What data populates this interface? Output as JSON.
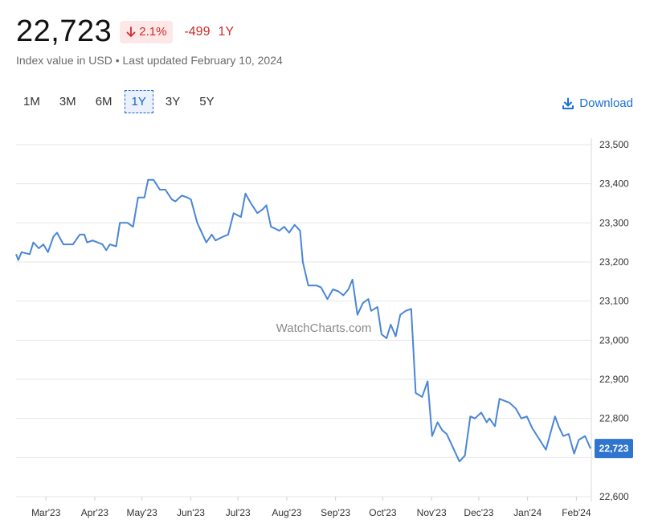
{
  "header": {
    "price": "22,723",
    "change_pct": "2.1%",
    "change_abs": "-499",
    "change_period": "1Y",
    "subtitle": "Index value in USD • Last updated February 10, 2024"
  },
  "ranges": [
    "1M",
    "3M",
    "6M",
    "1Y",
    "3Y",
    "5Y"
  ],
  "active_range": "1Y",
  "download_label": "Download",
  "watermark": "WatchCharts.com",
  "colors": {
    "line": "#4a86d6",
    "negative": "#d02a2a",
    "accent": "#1a6fd6",
    "tag": "#2f74cf"
  },
  "chart_data": {
    "type": "line",
    "ylim": [
      22600,
      23500
    ],
    "yticks": [
      22600,
      22700,
      22800,
      22900,
      23000,
      23100,
      23200,
      23300,
      23400,
      23500
    ],
    "ytick_labels": [
      "22,600",
      "",
      "22,800",
      "22,900",
      "23,000",
      "23,100",
      "23,200",
      "23,300",
      "23,400",
      "23,500"
    ],
    "x_start": "2023-02-10",
    "x_end": "2024-02-10",
    "xtick_labels": [
      "Mar'23",
      "Apr'23",
      "May'23",
      "Jun'23",
      "Jul'23",
      "Aug'23",
      "Sep'23",
      "Oct'23",
      "Nov'23",
      "Dec'23",
      "Jan'24",
      "Feb'24"
    ],
    "xtick_dates": [
      "2023-03-01",
      "2023-04-01",
      "2023-05-01",
      "2023-06-01",
      "2023-07-01",
      "2023-08-01",
      "2023-09-01",
      "2023-10-01",
      "2023-11-01",
      "2023-12-01",
      "2024-01-01",
      "2024-02-01"
    ],
    "last_value_label": "22,723",
    "series": [
      {
        "points": [
          [
            "2023-02-10",
            23220
          ],
          [
            "2023-02-12",
            23205
          ],
          [
            "2023-02-15",
            23225
          ],
          [
            "2023-02-22",
            23220
          ],
          [
            "2023-02-25",
            23250
          ],
          [
            "2023-03-01",
            23235
          ],
          [
            "2023-03-04",
            23245
          ],
          [
            "2023-03-08",
            23225
          ],
          [
            "2023-03-12",
            23265
          ],
          [
            "2023-03-15",
            23275
          ],
          [
            "2023-03-20",
            23245
          ],
          [
            "2023-03-28",
            23245
          ],
          [
            "2023-04-02",
            23270
          ],
          [
            "2023-04-06",
            23270
          ],
          [
            "2023-04-08",
            23250
          ],
          [
            "2023-04-12",
            23255
          ],
          [
            "2023-04-20",
            23245
          ],
          [
            "2023-04-23",
            23230
          ],
          [
            "2023-04-26",
            23245
          ],
          [
            "2023-05-01",
            23240
          ],
          [
            "2023-05-04",
            23300
          ],
          [
            "2023-05-10",
            23300
          ],
          [
            "2023-05-14",
            23290
          ],
          [
            "2023-05-18",
            23365
          ],
          [
            "2023-05-23",
            23365
          ],
          [
            "2023-05-26",
            23410
          ],
          [
            "2023-05-30",
            23410
          ],
          [
            "2023-06-04",
            23385
          ],
          [
            "2023-06-08",
            23385
          ],
          [
            "2023-06-13",
            23360
          ],
          [
            "2023-06-16",
            23355
          ],
          [
            "2023-06-21",
            23370
          ],
          [
            "2023-06-25",
            23365
          ],
          [
            "2023-06-28",
            23360
          ],
          [
            "2023-07-03",
            23300
          ],
          [
            "2023-07-10",
            23250
          ],
          [
            "2023-07-14",
            23270
          ],
          [
            "2023-07-17",
            23255
          ],
          [
            "2023-07-23",
            23265
          ],
          [
            "2023-07-27",
            23270
          ],
          [
            "2023-07-31",
            23325
          ],
          [
            "2023-08-03",
            23320
          ],
          [
            "2023-08-06",
            23315
          ],
          [
            "2023-08-09",
            23375
          ],
          [
            "2023-08-13",
            23350
          ],
          [
            "2023-08-18",
            23325
          ],
          [
            "2023-08-22",
            23335
          ],
          [
            "2023-08-25",
            23345
          ],
          [
            "2023-08-29",
            23290
          ],
          [
            "2023-09-01",
            23285
          ],
          [
            "2023-09-04",
            23280
          ],
          [
            "2023-09-08",
            23290
          ],
          [
            "2023-09-12",
            23275
          ],
          [
            "2023-09-16",
            23295
          ],
          [
            "2023-09-20",
            23280
          ],
          [
            "2023-09-22",
            23200
          ],
          [
            "2023-09-26",
            23140
          ],
          [
            "2023-10-02",
            23140
          ],
          [
            "2023-10-06",
            23135
          ],
          [
            "2023-10-11",
            23105
          ],
          [
            "2023-10-15",
            23130
          ],
          [
            "2023-10-19",
            23125
          ],
          [
            "2023-10-23",
            23115
          ],
          [
            "2023-10-27",
            23130
          ],
          [
            "2023-10-30",
            23155
          ],
          [
            "2023-11-03",
            23065
          ],
          [
            "2023-11-07",
            23095
          ],
          [
            "2023-11-11",
            23105
          ],
          [
            "2023-11-13",
            23075
          ],
          [
            "2023-11-18",
            23085
          ],
          [
            "2023-11-21",
            23015
          ],
          [
            "2023-11-25",
            23005
          ],
          [
            "2023-11-28",
            23040
          ],
          [
            "2023-12-02",
            23010
          ],
          [
            "2023-12-05",
            23065
          ],
          [
            "2023-12-09",
            23075
          ],
          [
            "2023-12-13",
            23080
          ],
          [
            "2023-12-16",
            22865
          ],
          [
            "2023-12-21",
            22855
          ],
          [
            "2023-12-25",
            22895
          ],
          [
            "2023-12-28",
            22755
          ],
          [
            "2024-01-01",
            22790
          ],
          [
            "2024-01-05",
            22770
          ],
          [
            "2024-01-08",
            22760
          ],
          [
            "2024-01-17",
            22690
          ],
          [
            "2024-01-21",
            22705
          ],
          [
            "2024-01-25",
            22805
          ],
          [
            "2024-01-28",
            22800
          ],
          [
            "2024-02-02",
            22815
          ],
          [
            "2024-02-06",
            22790
          ],
          [
            "2024-02-08",
            22800
          ],
          [
            "2024-01-20",
            22690
          ]
        ],
        "clean_points": [
          [
            0.0,
            23220
          ],
          [
            0.5,
            23205
          ],
          [
            1.2,
            23225
          ],
          [
            3.0,
            23220
          ],
          [
            3.8,
            23250
          ],
          [
            5.0,
            23235
          ],
          [
            6.0,
            23245
          ],
          [
            7.0,
            23225
          ],
          [
            8.2,
            23265
          ],
          [
            9.0,
            23275
          ],
          [
            10.4,
            23245
          ],
          [
            12.5,
            23245
          ],
          [
            14.0,
            23270
          ],
          [
            15.0,
            23270
          ],
          [
            15.6,
            23250
          ],
          [
            16.8,
            23255
          ],
          [
            19.0,
            23245
          ],
          [
            19.8,
            23230
          ],
          [
            20.6,
            23245
          ],
          [
            22.0,
            23240
          ],
          [
            22.8,
            23300
          ],
          [
            24.5,
            23300
          ],
          [
            25.7,
            23290
          ],
          [
            26.8,
            23365
          ],
          [
            28.2,
            23365
          ],
          [
            29.0,
            23410
          ],
          [
            30.2,
            23410
          ],
          [
            31.6,
            23385
          ],
          [
            32.8,
            23385
          ],
          [
            34.2,
            23360
          ],
          [
            35.0,
            23355
          ],
          [
            36.4,
            23370
          ],
          [
            37.6,
            23365
          ],
          [
            38.4,
            23360
          ],
          [
            39.8,
            23300
          ],
          [
            41.8,
            23250
          ],
          [
            43.0,
            23270
          ],
          [
            43.8,
            23255
          ],
          [
            45.5,
            23265
          ],
          [
            46.6,
            23270
          ],
          [
            47.8,
            23325
          ],
          [
            48.6,
            23320
          ],
          [
            49.4,
            23315
          ],
          [
            50.4,
            23375
          ],
          [
            51.6,
            23350
          ],
          [
            53.0,
            23325
          ],
          [
            54.2,
            23335
          ],
          [
            55.0,
            23345
          ],
          [
            56.0,
            23290
          ],
          [
            57.0,
            23285
          ],
          [
            57.8,
            23280
          ],
          [
            58.9,
            23290
          ],
          [
            60.0,
            23275
          ],
          [
            61.2,
            23295
          ],
          [
            62.4,
            23280
          ],
          [
            63.0,
            23200
          ],
          [
            64.2,
            23140
          ],
          [
            66.0,
            23140
          ],
          [
            67.0,
            23135
          ],
          [
            68.4,
            23105
          ],
          [
            69.6,
            23130
          ],
          [
            70.8,
            23125
          ],
          [
            71.9,
            23115
          ],
          [
            73.0,
            23130
          ],
          [
            73.9,
            23155
          ],
          [
            75.0,
            23065
          ],
          [
            76.2,
            23095
          ],
          [
            77.4,
            23105
          ],
          [
            78.0,
            23075
          ],
          [
            79.4,
            23085
          ],
          [
            80.3,
            23015
          ],
          [
            81.4,
            23005
          ],
          [
            82.3,
            23040
          ],
          [
            83.4,
            23010
          ],
          [
            84.4,
            23065
          ],
          [
            85.6,
            23075
          ],
          [
            86.8,
            23080
          ],
          [
            87.8,
            22865
          ],
          [
            89.2,
            22855
          ],
          [
            90.4,
            22895
          ],
          [
            91.4,
            22755
          ],
          [
            92.6,
            22790
          ],
          [
            93.6,
            22770
          ],
          [
            94.6,
            22760
          ],
          [
            97.4,
            22690
          ],
          [
            98.6,
            22705
          ],
          [
            99.8,
            22805
          ],
          [
            100.8,
            22800
          ],
          [
            102.2,
            22815
          ],
          [
            103.4,
            22790
          ],
          [
            104.0,
            22800
          ],
          [
            105.2,
            22780
          ],
          [
            106.2,
            22850
          ],
          [
            108.4,
            22840
          ],
          [
            109.8,
            22825
          ],
          [
            111.0,
            22800
          ],
          [
            112.2,
            22805
          ],
          [
            113.4,
            22775
          ],
          [
            116.4,
            22720
          ],
          [
            118.4,
            22805
          ],
          [
            119.2,
            22780
          ],
          [
            120.2,
            22755
          ],
          [
            121.4,
            22760
          ],
          [
            122.6,
            22710
          ],
          [
            123.6,
            22745
          ],
          [
            125.0,
            22755
          ],
          [
            126.2,
            22723
          ]
        ]
      }
    ]
  }
}
